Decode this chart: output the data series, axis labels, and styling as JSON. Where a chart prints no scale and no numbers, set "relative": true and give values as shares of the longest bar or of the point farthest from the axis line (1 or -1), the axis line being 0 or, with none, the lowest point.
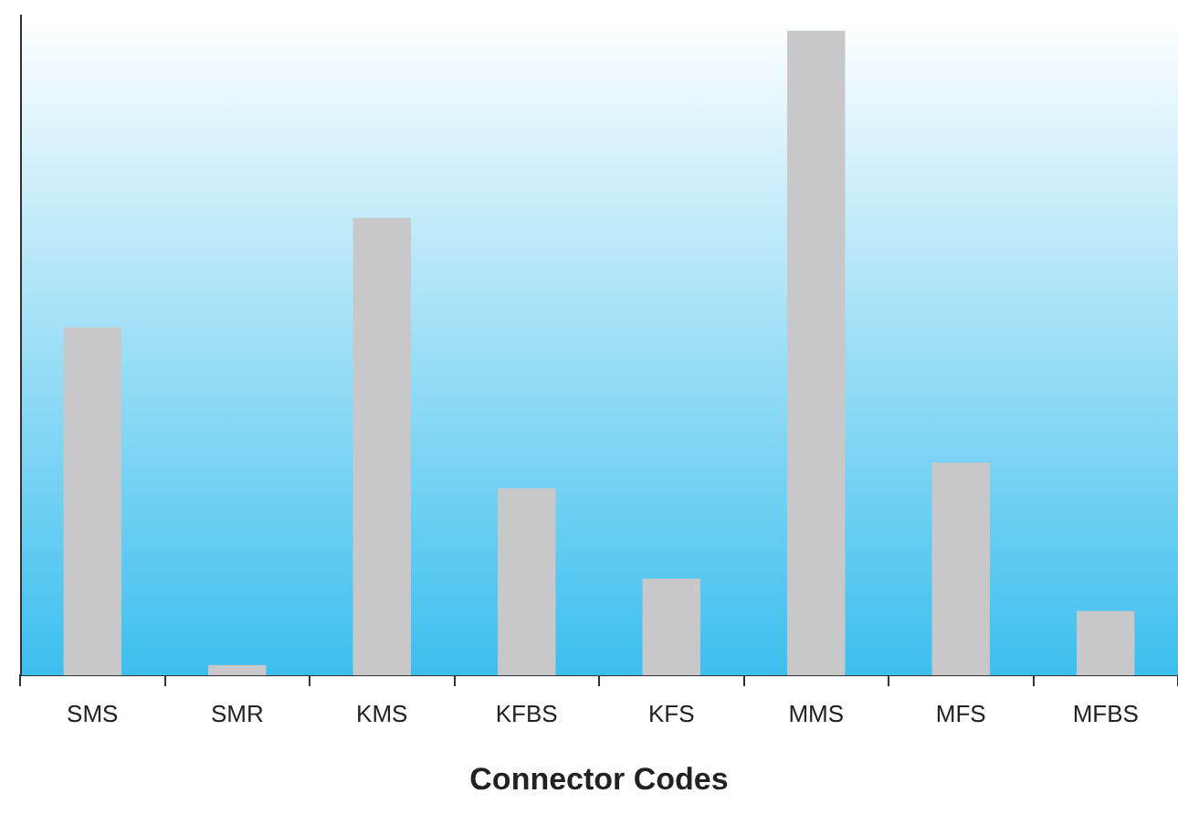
{
  "chart_data": {
    "type": "bar",
    "xlabel": "Connector Codes",
    "relative": true,
    "categories": [
      "SMS",
      "SMR",
      "KMS",
      "KFBS",
      "KFS",
      "MMS",
      "MFS",
      "MFBS"
    ],
    "values": [
      0.54,
      0.016,
      0.71,
      0.29,
      0.15,
      1,
      0.33,
      0.1
    ],
    "color": "#c8c8ca",
    "grid": false,
    "legend": false
  }
}
